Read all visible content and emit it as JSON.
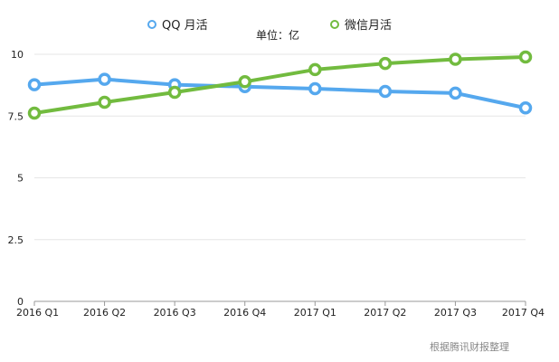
{
  "chart_data": {
    "type": "line",
    "title": "",
    "unit_label": "单位：亿",
    "categories": [
      "2016 Q1",
      "2016 Q2",
      "2016 Q3",
      "2016 Q4",
      "2017 Q1",
      "2017 Q2",
      "2017 Q3",
      "2017 Q4"
    ],
    "series": [
      {
        "name": "QQ 月活",
        "color": "#55a8ee",
        "values": [
          8.77,
          8.99,
          8.77,
          8.69,
          8.61,
          8.5,
          8.43,
          7.83
        ]
      },
      {
        "name": "微信月活",
        "color": "#72bb3f",
        "values": [
          7.62,
          8.06,
          8.46,
          8.89,
          9.38,
          9.63,
          9.8,
          9.89
        ]
      }
    ],
    "yticks": [
      "0",
      "2.5",
      "5",
      "7.5",
      "10"
    ],
    "ylim": [
      0,
      10
    ],
    "grid": true,
    "legend": "top-center",
    "source": "根据腾讯财报整理"
  }
}
